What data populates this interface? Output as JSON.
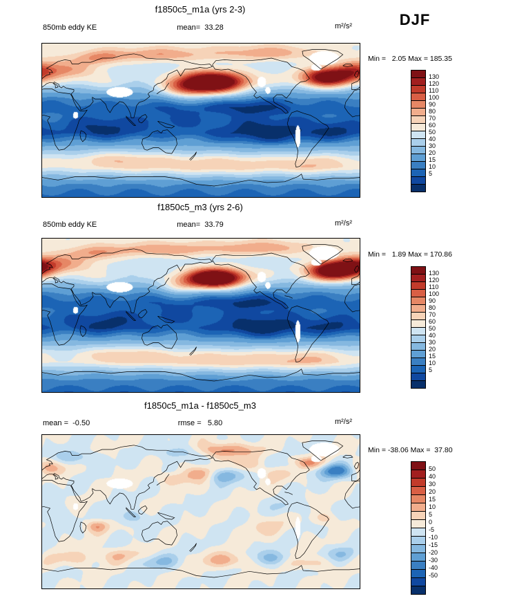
{
  "season_label": "DJF",
  "palette": [
    "#08306b",
    "#1048a0",
    "#1c64b5",
    "#3a7fc2",
    "#5f9fd4",
    "#85b8e0",
    "#aacfeb",
    "#cfe4f2",
    "#f6ead9",
    "#f6d3b8",
    "#f1ad8c",
    "#e68765",
    "#d95f45",
    "#c23b2b",
    "#a21f1f",
    "#7f1115"
  ],
  "panels": [
    {
      "title": "f1850c5_m1a (yrs 2-3)",
      "left_label": "850mb eddy KE",
      "center_label": "mean=  33.28",
      "units": "m²/s²",
      "minmax": "Min =   2.05 Max = 185.35",
      "colorbar_labels": [
        "130",
        "120",
        "110",
        "100",
        "90",
        "80",
        "70",
        "60",
        "50",
        "40",
        "30",
        "20",
        "15",
        "10",
        "5"
      ]
    },
    {
      "title": "f1850c5_m3 (yrs 2-6)",
      "left_label": "850mb eddy KE",
      "center_label": "mean=  33.79",
      "units": "m²/s²",
      "minmax": "Min =   1.89 Max = 170.86",
      "colorbar_labels": [
        "130",
        "120",
        "110",
        "100",
        "90",
        "80",
        "70",
        "60",
        "50",
        "40",
        "30",
        "20",
        "15",
        "10",
        "5"
      ]
    },
    {
      "title": "f1850c5_m1a - f1850c5_m3",
      "left_label": "mean =  -0.50",
      "center_label": "rmse =   5.80",
      "units": "m²/s²",
      "minmax": "Min = -38.06 Max =  37.80",
      "colorbar_labels": [
        "50",
        "40",
        "30",
        "20",
        "15",
        "10",
        "5",
        "0",
        "-5",
        "-10",
        "-15",
        "-20",
        "-30",
        "-40",
        "-50"
      ]
    }
  ],
  "chart_data": [
    {
      "type": "heatmap",
      "subtype": "filled-contour-world-map",
      "title": "f1850c5_m1a (yrs 2-3)",
      "variable": "850mb eddy KE",
      "season": "DJF",
      "units": "m2/s2",
      "mean": 33.28,
      "min": 2.05,
      "max": 185.35,
      "contour_levels": [
        5,
        10,
        15,
        20,
        30,
        40,
        50,
        60,
        70,
        80,
        90,
        100,
        110,
        120,
        130
      ],
      "projection": "equirectangular, lon 0-360E, lat 90N-90S",
      "notes": "High eddy KE (red, >130) in North Pacific and North Atlantic winter storm tracks; dark blue (<10) over tropics and subtropics; moderate (50-80) over Arctic and Southern Ocean; white masked areas over high terrain (Tibet, Greenland, Rockies, Andes)."
    },
    {
      "type": "heatmap",
      "subtype": "filled-contour-world-map",
      "title": "f1850c5_m3 (yrs 2-6)",
      "variable": "850mb eddy KE",
      "season": "DJF",
      "units": "m2/s2",
      "mean": 33.79,
      "min": 1.89,
      "max": 170.86,
      "contour_levels": [
        5,
        10,
        15,
        20,
        30,
        40,
        50,
        60,
        70,
        80,
        90,
        100,
        110,
        120,
        130
      ],
      "projection": "equirectangular, lon 0-360E, lat 90N-90S",
      "notes": "Same pattern as m1a: storm-track maxima in North Pacific and North Atlantic, tropical minimum, Southern Ocean band."
    },
    {
      "type": "heatmap",
      "subtype": "difference-map",
      "title": "f1850c5_m1a - f1850c5_m3",
      "season": "DJF",
      "units": "m2/s2",
      "mean": -0.5,
      "rmse": 5.8,
      "min": -38.06,
      "max": 37.8,
      "contour_levels": [
        -50,
        -40,
        -30,
        -20,
        -15,
        -10,
        -5,
        0,
        5,
        10,
        15,
        20,
        30,
        40,
        50
      ],
      "projection": "equirectangular, lon 0-360E, lat 90N-90S",
      "notes": "Mostly near zero (white/pale) with scattered +/-10 to 40 differences concentrated in Arctic, North Pacific and North Atlantic storm-track regions and the Southern Ocean."
    }
  ]
}
